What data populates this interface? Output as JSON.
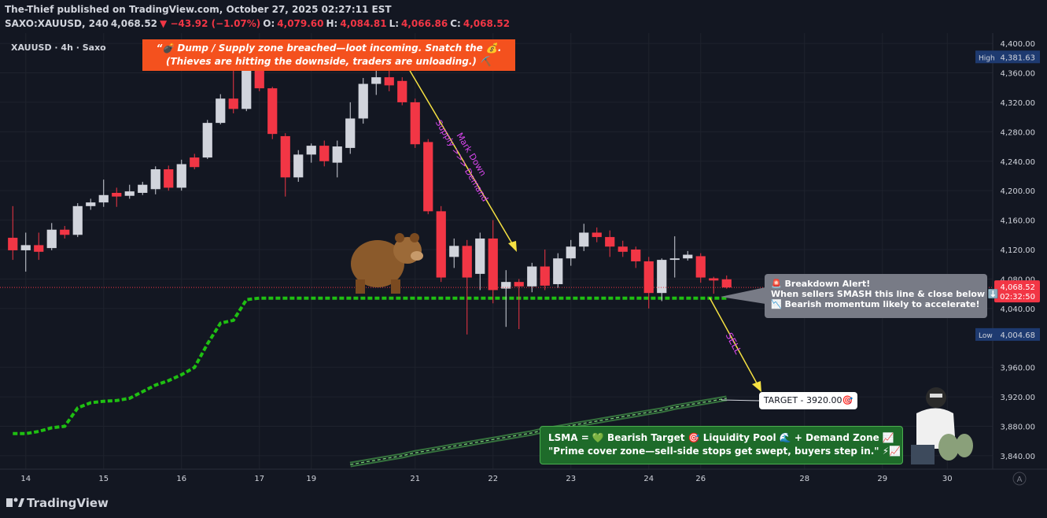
{
  "header": {
    "published": "The-Thief published on TradingView.com, October 27, 2025 02:27:11 EST",
    "quote": [
      {
        "text": "SAXO:XAUUSD, 240",
        "color": "#d1d4dc"
      },
      {
        "text": "4,068.52",
        "color": "#d1d4dc"
      },
      {
        "text": "▼ −43.92 (−1.07%)",
        "color": "#f23645"
      },
      {
        "text": "O:",
        "color": "#d1d4dc"
      },
      {
        "text": "4,079.60",
        "color": "#f23645"
      },
      {
        "text": "H:",
        "color": "#d1d4dc"
      },
      {
        "text": "4,084.81",
        "color": "#f23645"
      },
      {
        "text": "L:",
        "color": "#d1d4dc"
      },
      {
        "text": "4,066.86",
        "color": "#f23645"
      },
      {
        "text": "C:",
        "color": "#d1d4dc"
      },
      {
        "text": "4,068.52",
        "color": "#f23645"
      }
    ]
  },
  "annotations": {
    "supply_1": "“💣 Dump / Supply zone breached—loot incoming. Snatch the 💰.",
    "supply_2": "(Thieves are hitting the downside, traders are unloading.) ⛏️",
    "markdown_1": "Mark Down",
    "markdown_2": "Supply >>> Demand",
    "alert_1": "🚨 Breakdown Alert!",
    "alert_2": "When sellers SMASH this line & close below ⬇️",
    "alert_3": "📉 Bearish momentum likely to accelerate!",
    "sell": "SELL",
    "target": "TARGET - 3920.00🎯",
    "lsma_1": "LSMA = 💚 Bearish Target 🎯 Liquidity Pool 🌊 + Demand Zone 📈",
    "lsma_2": "\"Prime cover zone—sell-side stops get swept, buyers step in.\" ⚡📈"
  },
  "footer": {
    "brand": "TradingView",
    "auto": "A"
  },
  "chart_data": {
    "type": "candlestick",
    "legend": "XAUUSD · 4h · Saxo",
    "up_color": "#d1d4dc",
    "down_color": "#f23645",
    "grid": true,
    "categories": [
      null,
      "14",
      null,
      null,
      null,
      null,
      null,
      "15",
      null,
      null,
      null,
      null,
      null,
      "16",
      null,
      null,
      null,
      null,
      null,
      "17",
      null,
      null,
      null,
      "19",
      null,
      null,
      null,
      null,
      null,
      null,
      null,
      "21",
      null,
      null,
      null,
      null,
      null,
      "22",
      null,
      null,
      null,
      null,
      null,
      "23",
      null,
      null,
      null,
      null,
      null,
      "24",
      null,
      null,
      null,
      "26",
      null,
      null,
      null,
      null,
      null,
      null,
      null,
      "28",
      null,
      null,
      null,
      null,
      null,
      "29",
      null,
      null,
      null,
      null,
      "30",
      null,
      null,
      null
    ],
    "ohlc": [
      [
        4136,
        4179,
        4106,
        4119
      ],
      [
        4119,
        4143,
        4090,
        4126
      ],
      [
        4126,
        4143,
        4106,
        4117
      ],
      [
        4122,
        4156,
        4119,
        4147
      ],
      [
        4147,
        4152,
        4135,
        4140
      ],
      [
        4140,
        4183,
        4137,
        4179
      ],
      [
        4179,
        4189,
        4174,
        4184
      ],
      [
        4184,
        4215,
        4178,
        4194
      ],
      [
        4197,
        4204,
        4178,
        4192
      ],
      [
        4193,
        4208,
        4189,
        4199
      ],
      [
        4197,
        4212,
        4194,
        4208
      ],
      [
        4202,
        4233,
        4195,
        4229
      ],
      [
        4229,
        4234,
        4200,
        4204
      ],
      [
        4204,
        4242,
        4200,
        4236
      ],
      [
        4245,
        4250,
        4229,
        4232
      ],
      [
        4245,
        4296,
        4243,
        4292
      ],
      [
        4292,
        4331,
        4290,
        4325
      ],
      [
        4325,
        4380,
        4305,
        4311
      ],
      [
        4311,
        4370,
        4308,
        4363
      ],
      [
        4364,
        4375,
        4335,
        4339
      ],
      [
        4339,
        4341,
        4270,
        4277
      ],
      [
        4274,
        4278,
        4192,
        4218
      ],
      [
        4218,
        4255,
        4212,
        4249
      ],
      [
        4249,
        4264,
        4238,
        4261
      ],
      [
        4261,
        4268,
        4233,
        4240
      ],
      [
        4238,
        4268,
        4218,
        4260
      ],
      [
        4258,
        4320,
        4250,
        4298
      ],
      [
        4298,
        4353,
        4291,
        4345
      ],
      [
        4345,
        4381.63,
        4330,
        4354
      ],
      [
        4354,
        4372,
        4335,
        4343
      ],
      [
        4349,
        4354,
        4316,
        4320
      ],
      [
        4320,
        4325,
        4258,
        4263
      ],
      [
        4266,
        4270,
        4168,
        4172
      ],
      [
        4172,
        4179,
        4076,
        4082
      ],
      [
        4110,
        4135,
        4095,
        4125
      ],
      [
        4125,
        4133,
        4004.68,
        4082
      ],
      [
        4087,
        4143,
        4065,
        4135
      ],
      [
        4135,
        4160,
        4047,
        4065
      ],
      [
        4067,
        4092,
        4015,
        4076
      ],
      [
        4076,
        4080,
        4012,
        4070
      ],
      [
        4070,
        4102,
        4062,
        4097
      ],
      [
        4097,
        4120,
        4065,
        4071
      ],
      [
        4073,
        4115,
        4068,
        4108
      ],
      [
        4108,
        4133,
        4098,
        4124
      ],
      [
        4124,
        4155,
        4118,
        4143
      ],
      [
        4143,
        4150,
        4130,
        4137
      ],
      [
        4137,
        4146,
        4110,
        4124
      ],
      [
        4124,
        4132,
        4110,
        4117
      ],
      [
        4120,
        4124,
        4095,
        4104
      ],
      [
        4104,
        4110,
        4040,
        4061
      ],
      [
        4061,
        4108,
        4050,
        4106
      ],
      [
        4106,
        4138,
        4082,
        4108
      ],
      [
        4108,
        4118,
        4105,
        4113
      ],
      [
        4111,
        4115,
        4075,
        4082
      ],
      [
        4081,
        4083,
        4060,
        4078
      ],
      [
        4079.6,
        4084.81,
        4066.86,
        4068.52
      ],
      null,
      null,
      null,
      null,
      null,
      null,
      null,
      null,
      null,
      null,
      null,
      null,
      null,
      null,
      null,
      null,
      null,
      null,
      null,
      null
    ],
    "series": [
      {
        "color": "#1fbf12",
        "values": [
          3870,
          3870,
          3873,
          3878,
          3880,
          3905,
          3912,
          3914,
          3915,
          3918,
          3927,
          3936,
          3942,
          3950,
          3960,
          3992,
          4020,
          4024,
          4052,
          4054,
          4054,
          4054,
          4054,
          4054,
          4054,
          4054,
          4054,
          4054,
          4054,
          4054,
          4054,
          4054,
          4054,
          4054,
          4054,
          4054,
          4054,
          4054,
          4054,
          4054,
          4054,
          4054,
          4054,
          4054,
          4054,
          4054,
          4054,
          4054,
          4054,
          4054,
          4054,
          4054,
          4054,
          4054,
          4054,
          4054,
          null,
          null,
          null,
          null,
          null,
          null,
          null,
          null,
          null,
          null,
          null,
          null,
          null,
          null,
          null,
          null,
          null,
          null,
          null,
          null
        ]
      },
      {
        "color": "#4caf50",
        "values": [
          null,
          null,
          null,
          null,
          null,
          null,
          null,
          null,
          null,
          null,
          null,
          null,
          null,
          null,
          null,
          null,
          null,
          null,
          null,
          null,
          null,
          null,
          null,
          null,
          null,
          null,
          3828,
          3831,
          3834,
          3837,
          3840,
          3844,
          3847,
          3850,
          3853,
          3856,
          3859,
          3862,
          3865,
          3868,
          3871,
          3875,
          3878,
          3881,
          3884,
          3887,
          3890,
          3893,
          3896,
          3899,
          3902,
          3906,
          3909,
          3912,
          3915,
          3918,
          null,
          null,
          null,
          null,
          null,
          null,
          null,
          null,
          null,
          null,
          null,
          null,
          null,
          null,
          null,
          null,
          null,
          null,
          null,
          null
        ]
      }
    ],
    "ylim": [
      3826,
      4414
    ],
    "yticks": [
      {
        "value": 4400,
        "label": "4,400.00"
      },
      {
        "value": 4360,
        "label": "4,360.00"
      },
      {
        "value": 4320,
        "label": "4,320.00"
      },
      {
        "value": 4280,
        "label": "4,280.00"
      },
      {
        "value": 4240,
        "label": "4,240.00"
      },
      {
        "value": 4200,
        "label": "4,200.00"
      },
      {
        "value": 4160,
        "label": "4,160.00"
      },
      {
        "value": 4120,
        "label": "4,120.00"
      },
      {
        "value": 4080,
        "label": "4,080.00"
      },
      {
        "value": 4040,
        "label": "4,040.00"
      },
      {
        "value": 3960,
        "label": "3,960.00"
      },
      {
        "value": 3920,
        "label": "3,920.00"
      },
      {
        "value": 3880,
        "label": "3,880.00"
      },
      {
        "value": 3840,
        "label": "3,840.00"
      }
    ],
    "high_label": {
      "text": "High",
      "value": "4,381.63"
    },
    "low_label": {
      "text": "Low",
      "value": "4,004.68"
    },
    "last_label": {
      "value": "4,068.52",
      "countdown": "02:32:50"
    }
  }
}
